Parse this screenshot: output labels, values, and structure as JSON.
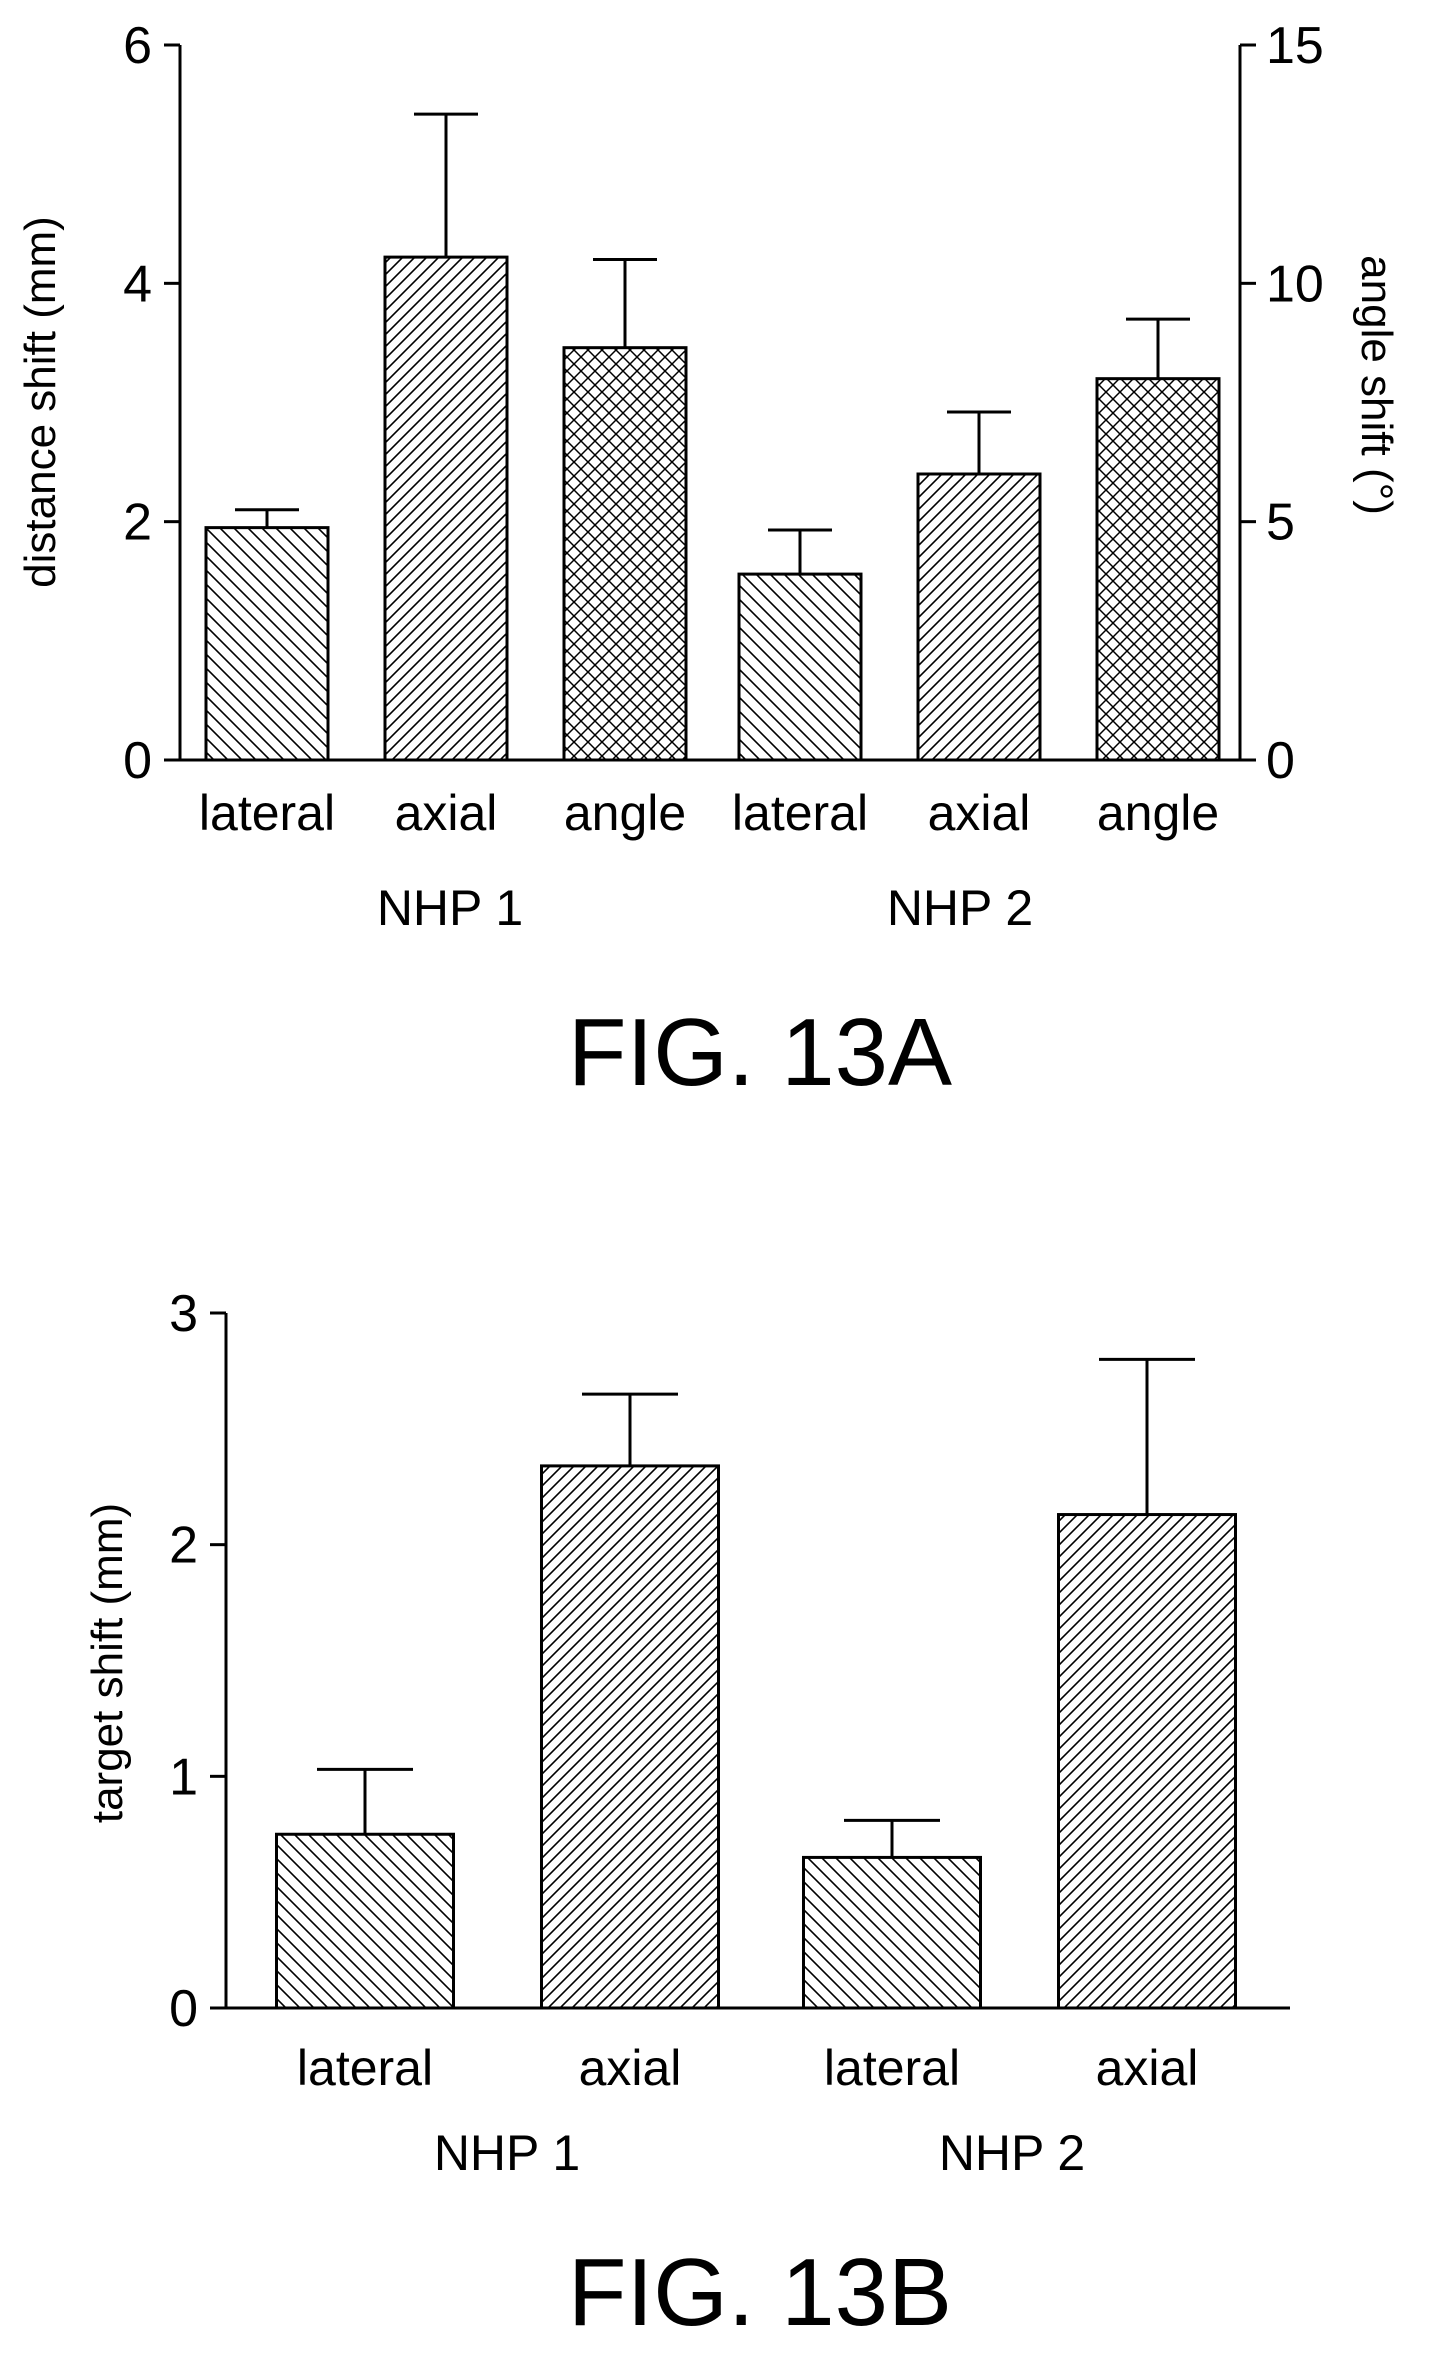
{
  "chart_data": [
    {
      "type": "bar",
      "figure_label": "FIG. 13A",
      "categories": [
        "lateral",
        "axial",
        "angle",
        "lateral",
        "axial",
        "angle"
      ],
      "groups": [
        {
          "name": "NHP 1",
          "categories": [
            "lateral",
            "axial",
            "angle"
          ]
        },
        {
          "name": "NHP 2",
          "categories": [
            "lateral",
            "axial",
            "angle"
          ]
        }
      ],
      "values": [
        1.95,
        4.22,
        8.65,
        1.56,
        2.4,
        8.0
      ],
      "errors": [
        0.15,
        1.2,
        1.85,
        0.37,
        0.52,
        1.25
      ],
      "value_axis": [
        "left",
        "left",
        "right",
        "left",
        "left",
        "right"
      ],
      "patterns": [
        "diag-down",
        "diag-up",
        "crosshatch",
        "diag-down",
        "diag-up",
        "crosshatch"
      ],
      "ylabel": "distance shift (mm)",
      "ylim": [
        0,
        6
      ],
      "yticks": [
        "0",
        "2",
        "4",
        "6"
      ],
      "y2label": "angle shift (°)",
      "y2lim": [
        0,
        15
      ],
      "y2ticks": [
        "0",
        "5",
        "10",
        "15"
      ]
    },
    {
      "type": "bar",
      "figure_label": "FIG. 13B",
      "categories": [
        "lateral",
        "axial",
        "lateral",
        "axial"
      ],
      "groups": [
        {
          "name": "NHP 1",
          "categories": [
            "lateral",
            "axial"
          ]
        },
        {
          "name": "NHP 2",
          "categories": [
            "lateral",
            "axial"
          ]
        }
      ],
      "values": [
        0.75,
        2.34,
        0.65,
        2.13
      ],
      "errors": [
        0.28,
        0.31,
        0.16,
        0.67
      ],
      "patterns": [
        "diag-down",
        "diag-up",
        "diag-down",
        "diag-up"
      ],
      "ylabel": "target shift (mm)",
      "ylim": [
        0,
        3
      ],
      "yticks": [
        "0",
        "1",
        "2",
        "3"
      ]
    }
  ]
}
